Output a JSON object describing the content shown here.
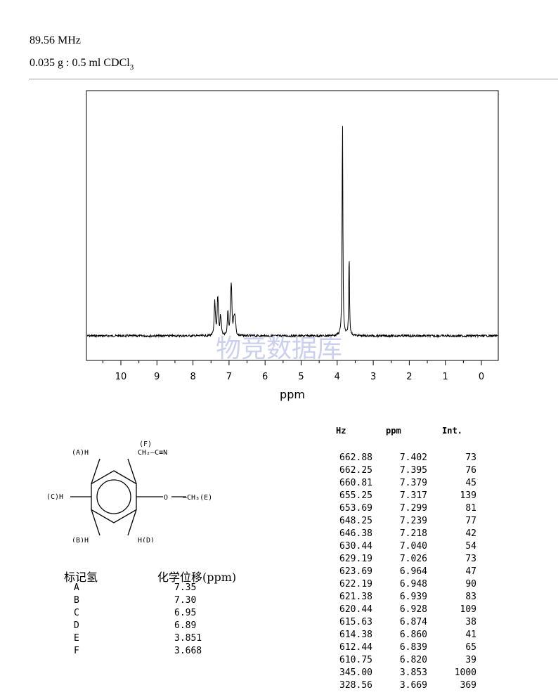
{
  "header": {
    "frequency": "89.56 MHz",
    "sample_main": "0.035 g : 0.5 ml CDCl",
    "sample_sub": "3"
  },
  "watermark": "物竞数据库",
  "structure": {
    "label_A": "(A)H",
    "label_B": "(B)H",
    "label_C": "(C)H",
    "label_D": "H(D)",
    "label_E": "—CH₃(E)",
    "label_F": "(F)",
    "label_O": "O",
    "label_chain": "CH₂—C≡N"
  },
  "assignment": {
    "header_label": "标记氢",
    "header_shift": "化学位移(ppm)",
    "rows": [
      {
        "label": "A",
        "shift": "7.35"
      },
      {
        "label": "B",
        "shift": "7.30"
      },
      {
        "label": "C",
        "shift": "6.95"
      },
      {
        "label": "D",
        "shift": "6.89"
      },
      {
        "label": "E",
        "shift": "3.851"
      },
      {
        "label": "F",
        "shift": "3.668"
      }
    ]
  },
  "peak_table": {
    "headers": [
      "Hz",
      "ppm",
      "Int."
    ],
    "rows": [
      [
        "662.88",
        "7.402",
        "73"
      ],
      [
        "662.25",
        "7.395",
        "76"
      ],
      [
        "660.81",
        "7.379",
        "45"
      ],
      [
        "655.25",
        "7.317",
        "139"
      ],
      [
        "653.69",
        "7.299",
        "81"
      ],
      [
        "648.25",
        "7.239",
        "77"
      ],
      [
        "646.38",
        "7.218",
        "42"
      ],
      [
        "630.44",
        "7.040",
        "54"
      ],
      [
        "629.19",
        "7.026",
        "73"
      ],
      [
        "623.69",
        "6.964",
        "47"
      ],
      [
        "622.19",
        "6.948",
        "90"
      ],
      [
        "621.38",
        "6.939",
        "83"
      ],
      [
        "620.44",
        "6.928",
        "109"
      ],
      [
        "615.63",
        "6.874",
        "38"
      ],
      [
        "614.38",
        "6.860",
        "41"
      ],
      [
        "612.44",
        "6.839",
        "65"
      ],
      [
        "610.75",
        "6.820",
        "39"
      ],
      [
        "345.00",
        "3.853",
        "1000"
      ],
      [
        "328.56",
        "3.669",
        "369"
      ]
    ]
  },
  "chart_data": {
    "type": "line",
    "xlabel": "ppm",
    "ylabel": "",
    "xlim": [
      11.0,
      -0.5
    ],
    "reversed_x": true,
    "x_ticks": [
      "10",
      "9",
      "8",
      "7",
      "6",
      "5",
      "4",
      "3",
      "2",
      "1",
      "0"
    ],
    "ylim": [
      0,
      1000
    ],
    "grid": false,
    "series": [
      {
        "x": [
          7.402,
          7.395,
          7.379,
          7.317,
          7.299,
          7.239,
          7.218,
          7.04,
          7.026,
          6.964,
          6.948,
          6.939,
          6.928,
          6.874,
          6.86,
          6.839,
          6.82,
          3.853,
          3.669
        ],
        "y": [
          73,
          76,
          45,
          139,
          81,
          77,
          42,
          54,
          73,
          47,
          90,
          83,
          109,
          38,
          41,
          65,
          39,
          1000,
          369
        ]
      }
    ]
  }
}
